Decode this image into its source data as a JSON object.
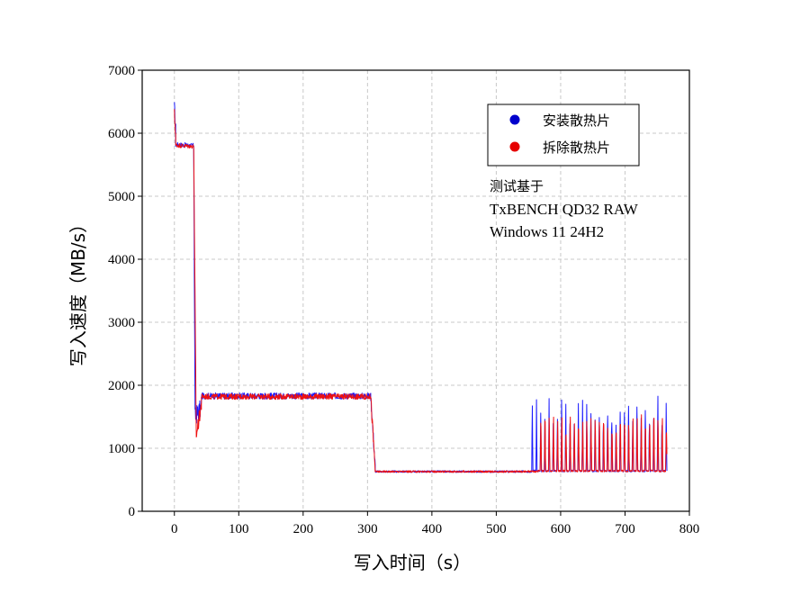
{
  "chart_data": {
    "type": "line",
    "title": "",
    "xlabel": "写入时间（s）",
    "ylabel": "写入速度（MB/s）",
    "xlim": [
      -50,
      800
    ],
    "ylim": [
      0,
      7000
    ],
    "xticks": [
      0,
      100,
      200,
      300,
      400,
      500,
      600,
      700,
      800
    ],
    "yticks": [
      0,
      1000,
      2000,
      3000,
      4000,
      5000,
      6000,
      7000
    ],
    "grid": true,
    "legend_position": "top-right",
    "series": [
      {
        "name": "安装散热片",
        "color": "#1a1aff",
        "marker_color": "#0000cc",
        "segments": [
          {
            "t0": 0,
            "t1": 2,
            "v0": 6400,
            "v1": 6050,
            "amp": 120,
            "kind": "ramp"
          },
          {
            "t0": 2,
            "t1": 30,
            "v0": 5820,
            "v1": 5800,
            "amp": 40,
            "kind": "flat"
          },
          {
            "t0": 30,
            "t1": 32,
            "v0": 5800,
            "v1": 1800,
            "amp": 0,
            "kind": "ramp"
          },
          {
            "t0": 32,
            "t1": 42,
            "v0": 1500,
            "v1": 1650,
            "amp": 150,
            "kind": "flat"
          },
          {
            "t0": 42,
            "t1": 305,
            "v0": 1830,
            "v1": 1830,
            "amp": 50,
            "kind": "flat"
          },
          {
            "t0": 305,
            "t1": 312,
            "v0": 1830,
            "v1": 700,
            "amp": 80,
            "kind": "ramp"
          },
          {
            "t0": 312,
            "t1": 555,
            "v0": 630,
            "v1": 630,
            "amp": 15,
            "kind": "flat"
          },
          {
            "t0": 555,
            "t1": 765,
            "v0": 640,
            "v1": 1850,
            "amp": 0,
            "kind": "spikes",
            "period": 6.5,
            "phase": 0
          }
        ]
      },
      {
        "name": "拆除散热片",
        "color": "#ee1111",
        "marker_color": "#e60000",
        "segments": [
          {
            "t0": 0,
            "t1": 2,
            "v0": 6300,
            "v1": 6000,
            "amp": 100,
            "kind": "ramp"
          },
          {
            "t0": 2,
            "t1": 30,
            "v0": 5810,
            "v1": 5790,
            "amp": 35,
            "kind": "flat"
          },
          {
            "t0": 30,
            "t1": 34,
            "v0": 5790,
            "v1": 1200,
            "amp": 0,
            "kind": "ramp"
          },
          {
            "t0": 34,
            "t1": 42,
            "v0": 1200,
            "v1": 1700,
            "amp": 120,
            "kind": "flat"
          },
          {
            "t0": 42,
            "t1": 305,
            "v0": 1820,
            "v1": 1820,
            "amp": 45,
            "kind": "flat"
          },
          {
            "t0": 305,
            "t1": 312,
            "v0": 1820,
            "v1": 650,
            "amp": 100,
            "kind": "ramp"
          },
          {
            "t0": 312,
            "t1": 565,
            "v0": 630,
            "v1": 630,
            "amp": 15,
            "kind": "flat"
          },
          {
            "t0": 565,
            "t1": 765,
            "v0": 640,
            "v1": 1800,
            "amp": 0,
            "kind": "spikes",
            "period": 6.5,
            "phase": 3.2
          }
        ]
      }
    ],
    "annotation": {
      "line1": "测试基于",
      "line2": "TxBENCH QD32 RAW",
      "line3": "Windows 11 24H2"
    }
  }
}
